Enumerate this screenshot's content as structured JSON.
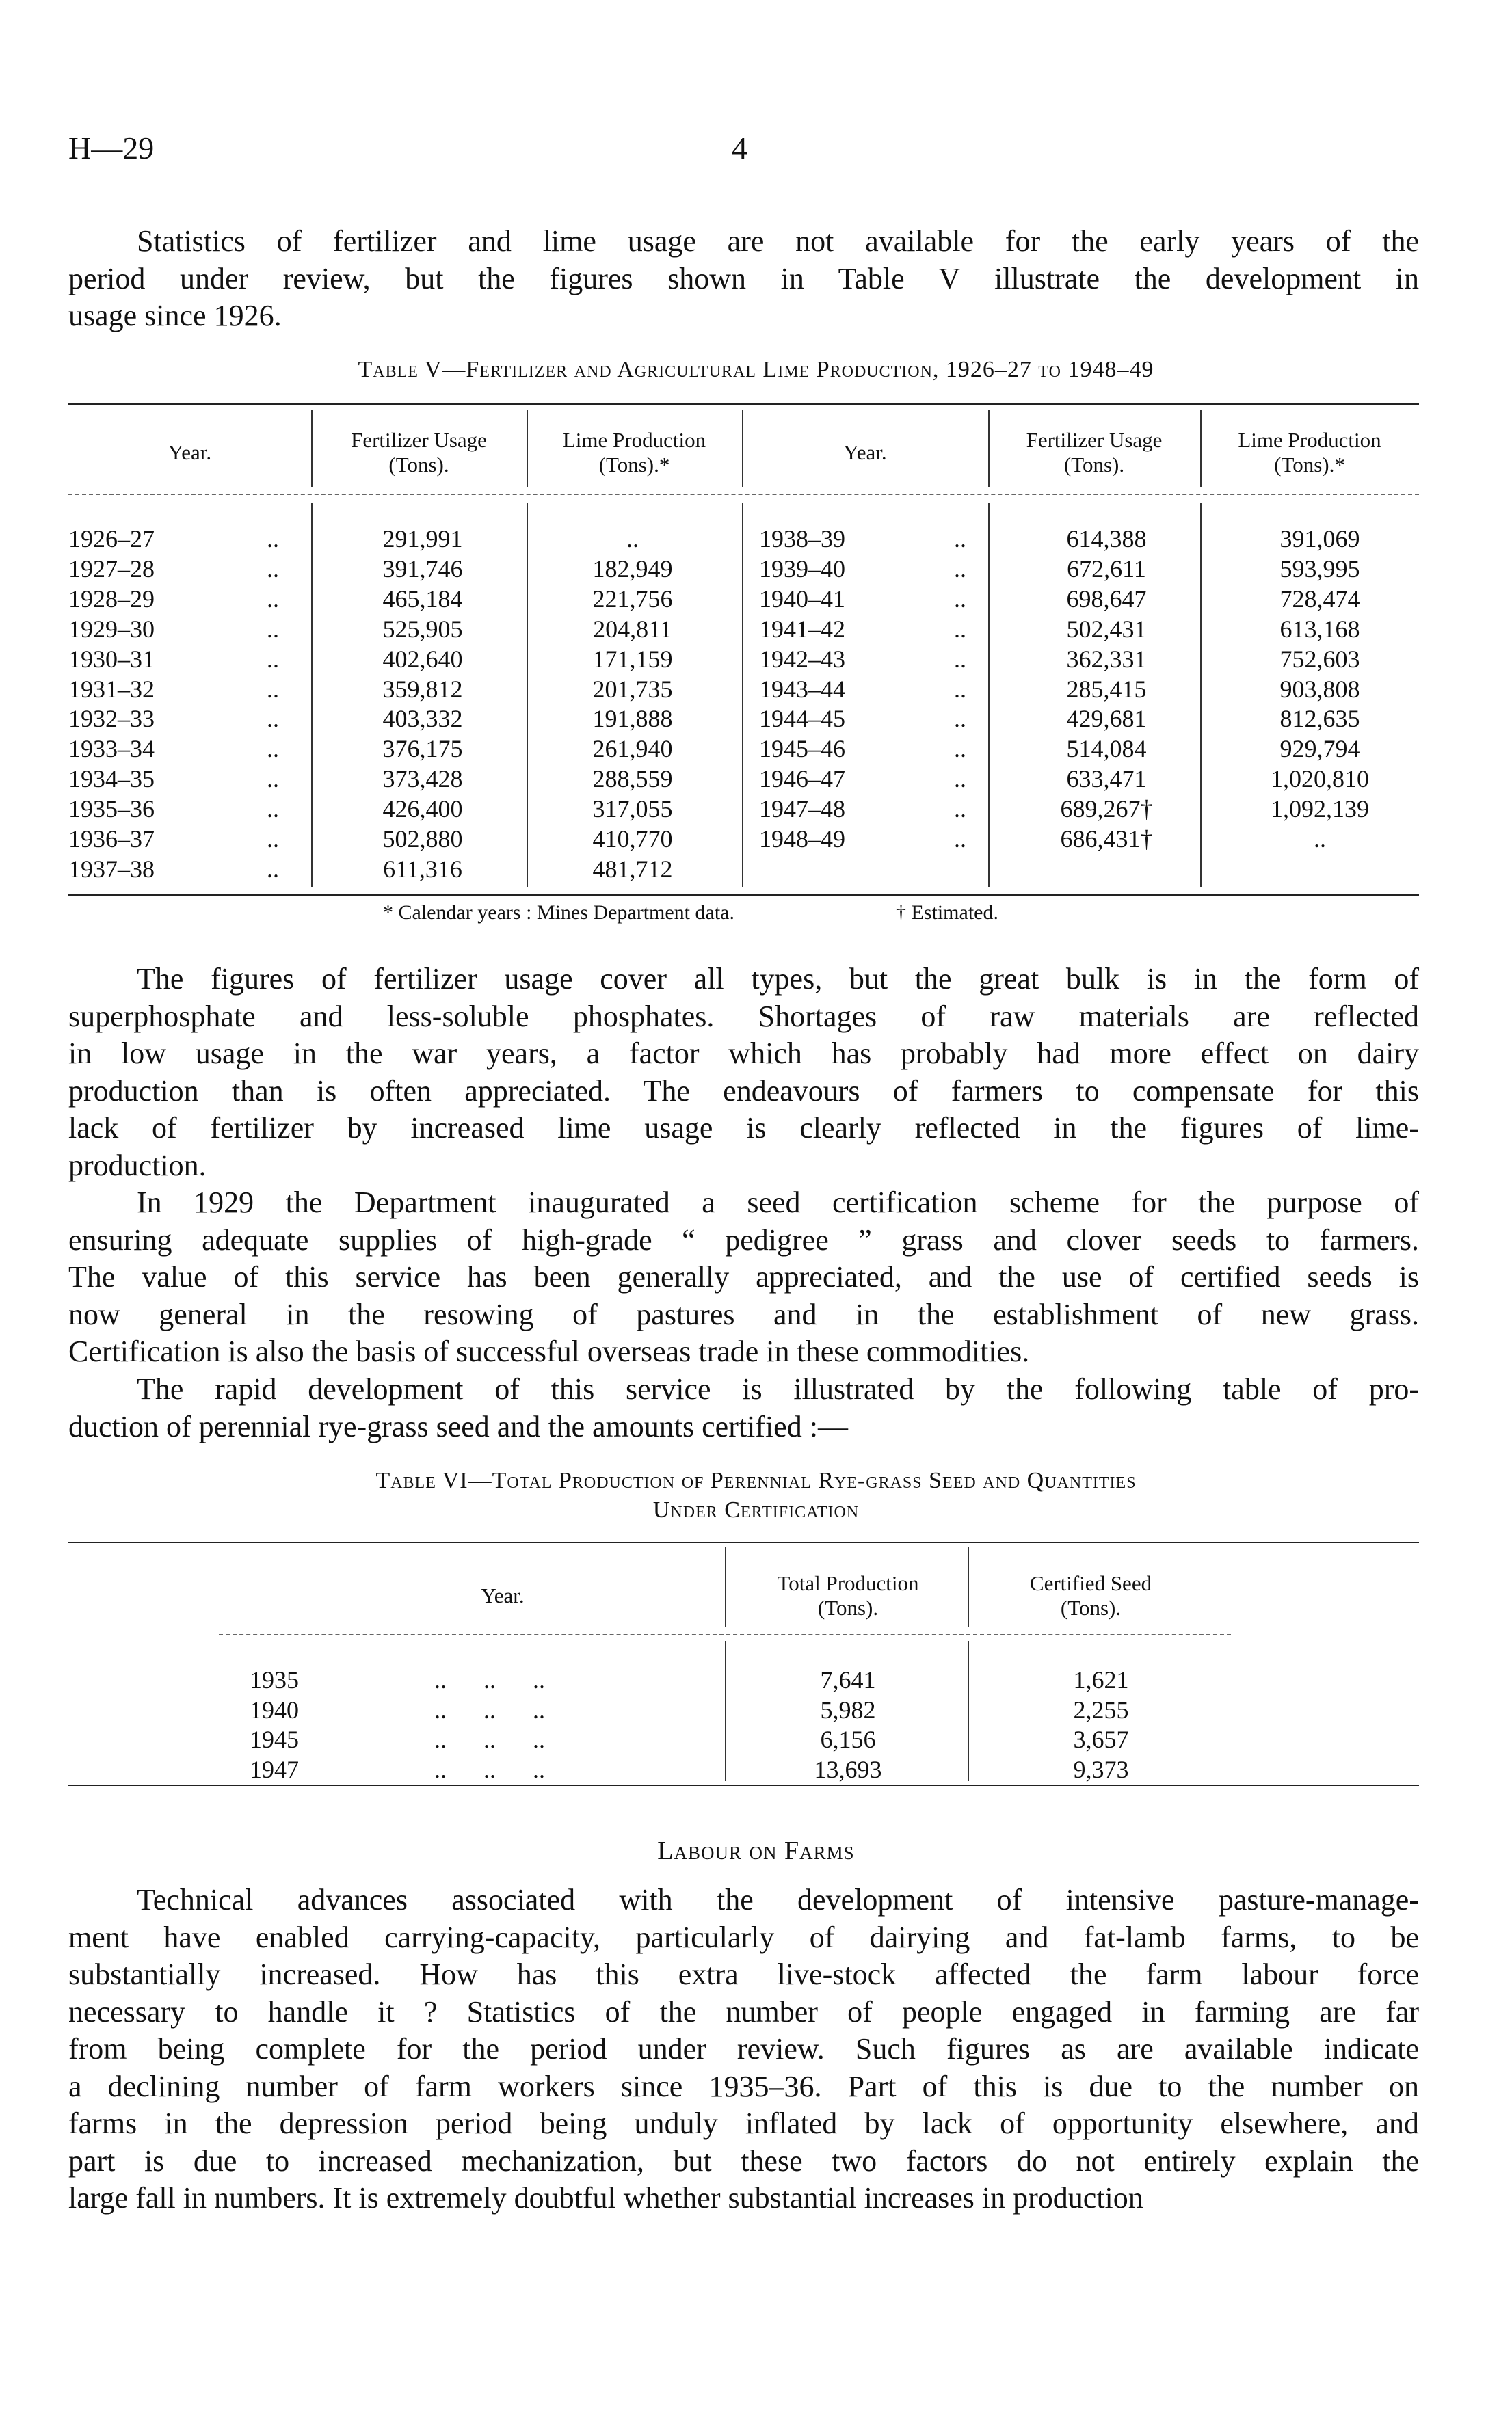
{
  "header": {
    "code": "H—29",
    "page_number": "4"
  },
  "para1": [
    "Statistics of fertilizer and lime usage are not available for the early years of the",
    "period under review, but the figures shown in Table V illustrate the development in",
    "usage since 1926."
  ],
  "table5": {
    "caption": "Table V—Fertilizer and Agricultural Lime Production, 1926–27 to 1948–49",
    "headers": {
      "year": "Year.",
      "fert": [
        "Fertilizer Usage",
        "(Tons)."
      ],
      "lime": [
        "Lime Production",
        "(Tons).*"
      ]
    },
    "dots": "..",
    "left": [
      [
        "1926–27",
        "291,991",
        ".."
      ],
      [
        "1927–28",
        "391,746",
        "182,949"
      ],
      [
        "1928–29",
        "465,184",
        "221,756"
      ],
      [
        "1929–30",
        "525,905",
        "204,811"
      ],
      [
        "1930–31",
        "402,640",
        "171,159"
      ],
      [
        "1931–32",
        "359,812",
        "201,735"
      ],
      [
        "1932–33",
        "403,332",
        "191,888"
      ],
      [
        "1933–34",
        "376,175",
        "261,940"
      ],
      [
        "1934–35",
        "373,428",
        "288,559"
      ],
      [
        "1935–36",
        "426,400",
        "317,055"
      ],
      [
        "1936–37",
        "502,880",
        "410,770"
      ],
      [
        "1937–38",
        "611,316",
        "481,712"
      ]
    ],
    "right": [
      [
        "1938–39",
        "614,388",
        "391,069"
      ],
      [
        "1939–40",
        "672,611",
        "593,995"
      ],
      [
        "1940–41",
        "698,647",
        "728,474"
      ],
      [
        "1941–42",
        "502,431",
        "613,168"
      ],
      [
        "1942–43",
        "362,331",
        "752,603"
      ],
      [
        "1943–44",
        "285,415",
        "903,808"
      ],
      [
        "1944–45",
        "429,681",
        "812,635"
      ],
      [
        "1945–46",
        "514,084",
        "929,794"
      ],
      [
        "1946–47",
        "633,471",
        "1,020,810"
      ],
      [
        "1947–48",
        "689,267†",
        "1,092,139"
      ],
      [
        "1948–49",
        "686,431†",
        ".."
      ]
    ],
    "footnotes": [
      "* Calendar years : Mines Department data.",
      "† Estimated."
    ]
  },
  "para2": [
    "The figures of fertilizer usage cover all types, but the great bulk is in the form of",
    "superphosphate and less-soluble phosphates. Shortages of raw materials are reflected",
    "in low usage in the war years, a factor which has probably had more effect on dairy",
    "production than is often appreciated. The endeavours of farmers to compensate for this",
    "lack of fertilizer by increased lime usage is clearly reflected in the figures of lime-",
    "production."
  ],
  "para3": [
    "In 1929 the Department inaugurated a seed certification scheme for the purpose of",
    "ensuring adequate supplies of high-grade “ pedigree ” grass and clover seeds to farmers.",
    "The value of this service has been generally appreciated, and the use of certified seeds is",
    "now general in the resowing of pastures and in the establishment of new grass.",
    "Certification is also the basis of successful overseas trade in these commodities."
  ],
  "para4": [
    "The rapid development of this service is illustrated by the following table of pro-",
    "duction of perennial rye-grass seed and the amounts certified :—"
  ],
  "table6": {
    "caption": [
      "Table VI—Total Production of Perennial Rye-grass Seed and Quantities",
      "Under Certification"
    ],
    "headers": {
      "year": "Year.",
      "total": [
        "Total Production",
        "(Tons)."
      ],
      "cert": [
        "Certified Seed",
        "(Tons)."
      ]
    },
    "dots": "..      ..      ..",
    "rows": [
      [
        "1935",
        "7,641",
        "1,621"
      ],
      [
        "1940",
        "5,982",
        "2,255"
      ],
      [
        "1945",
        "6,156",
        "3,657"
      ],
      [
        "1947",
        "13,693",
        "9,373"
      ]
    ]
  },
  "labour_heading": "Labour on Farms",
  "para5": [
    "Technical advances associated with the development of intensive pasture-manage-",
    "ment have enabled carrying-capacity, particularly of dairying and fat-lamb farms, to be",
    "substantially increased. How has this extra live-stock affected the farm labour force",
    "necessary to handle it ? Statistics of the number of people engaged in farming are far",
    "from being complete for the period under review. Such figures as are available indicate",
    "a declining number of farm workers since 1935–36. Part of this is due to the number on",
    "farms in the depression period being unduly inflated by lack of opportunity elsewhere, and",
    "part is due to increased mechanization, but these two factors do not entirely explain the",
    "large fall in numbers. It is extremely doubtful whether substantial increases in production"
  ]
}
